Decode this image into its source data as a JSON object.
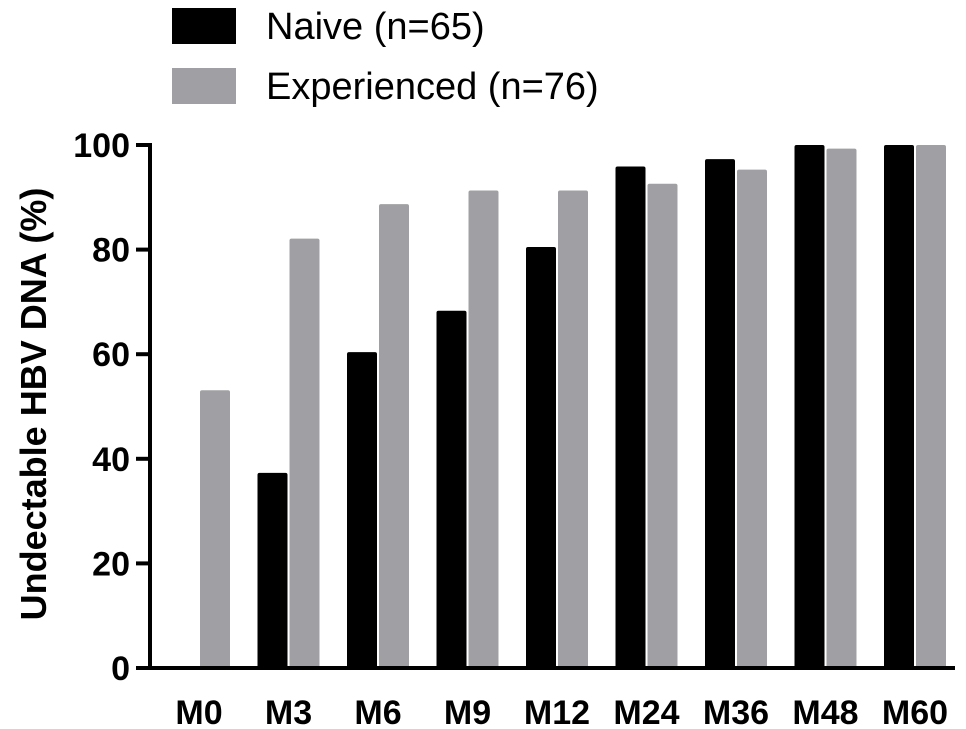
{
  "chart_data": {
    "type": "bar",
    "categories": [
      "M0",
      "M3",
      "M6",
      "M9",
      "M12",
      "M24",
      "M36",
      "M48",
      "M60"
    ],
    "series": [
      {
        "name": "Naive (n=65)",
        "color": "#000000",
        "values": [
          0,
          37.3,
          60.4,
          68.3,
          80.5,
          95.9,
          97.3,
          100,
          100
        ]
      },
      {
        "name": "Experienced (n=76)",
        "color": "#a0a0a4",
        "values": [
          53.1,
          82.1,
          88.7,
          91.3,
          91.3,
          92.6,
          95.3,
          99.3,
          100
        ]
      }
    ],
    "xlabel": "",
    "ylabel": "Undectable HBV DNA (%)",
    "ylim": [
      0,
      100
    ],
    "yticks": [
      0,
      20,
      40,
      60,
      80,
      100
    ],
    "grid": false,
    "legend_position": "top-left"
  }
}
